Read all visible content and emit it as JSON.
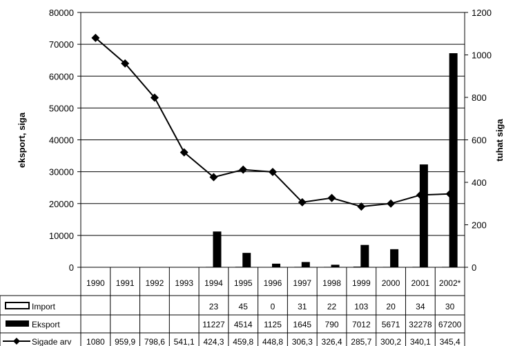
{
  "chart_data": {
    "type": "bar",
    "categories": [
      "1990",
      "1991",
      "1992",
      "1993",
      "1994",
      "1995",
      "1996",
      "1997",
      "1998",
      "1999",
      "2000",
      "2001",
      "2002*"
    ],
    "y_left": {
      "label": "eksport, siga",
      "range": [
        0,
        80000
      ],
      "ticks": [
        "0",
        "10000",
        "20000",
        "30000",
        "40000",
        "50000",
        "60000",
        "70000",
        "80000"
      ]
    },
    "y_right": {
      "label": "tuhat siga",
      "range": [
        0,
        1200
      ],
      "ticks": [
        "0",
        "200",
        "400",
        "600",
        "800",
        "1000",
        "1200"
      ]
    },
    "grid": true,
    "legend_position": "bottom data table",
    "series": [
      {
        "name": "Import",
        "type": "bar",
        "axis": "left",
        "color": "#ffffff",
        "values": [
          null,
          null,
          null,
          null,
          23,
          45,
          0,
          31,
          22,
          103,
          20,
          34,
          30
        ],
        "labels": [
          "",
          "",
          "",
          "",
          "23",
          "45",
          "0",
          "31",
          "22",
          "103",
          "20",
          "34",
          "30"
        ]
      },
      {
        "name": "Eksport",
        "type": "bar",
        "axis": "left",
        "color": "#000000",
        "values": [
          null,
          null,
          null,
          null,
          11227,
          4514,
          1125,
          1645,
          790,
          7012,
          5671,
          32278,
          67200
        ],
        "labels": [
          "",
          "",
          "",
          "",
          "11227",
          "4514",
          "1125",
          "1645",
          "790",
          "7012",
          "5671",
          "32278",
          "67200"
        ]
      },
      {
        "name": "Sigade arv",
        "type": "line",
        "axis": "right",
        "color": "#000000",
        "marker": "diamond",
        "values": [
          1080,
          959.9,
          798.6,
          541.1,
          424.3,
          459.8,
          448.8,
          306.3,
          326.4,
          285.7,
          300.2,
          340.1,
          345.4
        ],
        "labels": [
          "1080",
          "959,9",
          "798,6",
          "541,1",
          "424,3",
          "459,8",
          "448,8",
          "306,3",
          "326,4",
          "285,7",
          "300,2",
          "340,1",
          "345,4"
        ]
      }
    ]
  }
}
